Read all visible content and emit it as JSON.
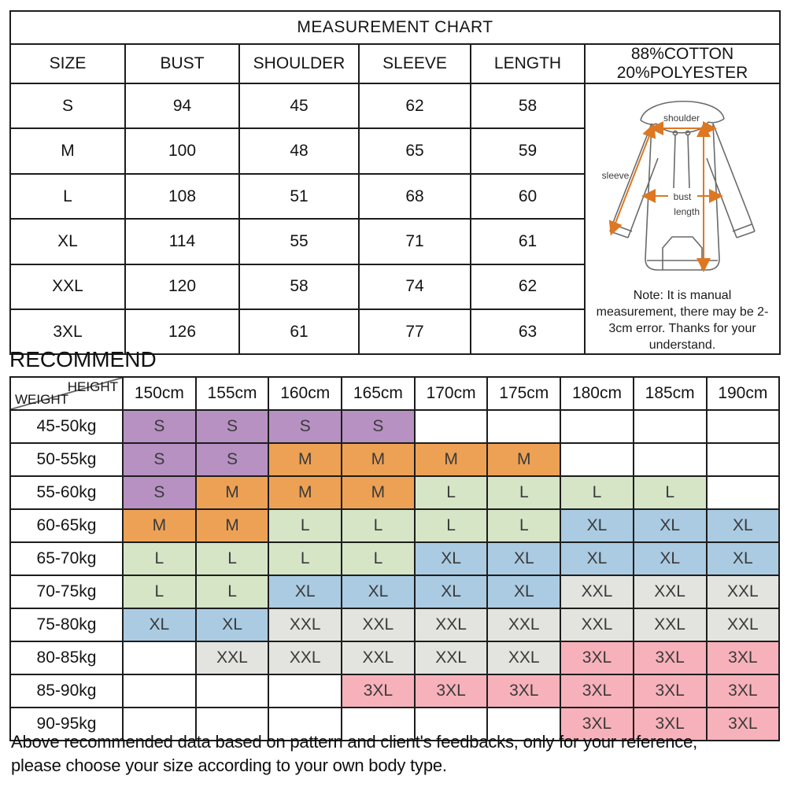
{
  "chart_data": [
    {
      "type": "table",
      "title": "MEASUREMENT CHART",
      "columns": [
        "SIZE",
        "BUST",
        "SHOULDER",
        "SLEEVE",
        "LENGTH"
      ],
      "rows": [
        [
          "S",
          94,
          45,
          62,
          58
        ],
        [
          "M",
          100,
          48,
          65,
          59
        ],
        [
          "L",
          108,
          51,
          68,
          60
        ],
        [
          "XL",
          114,
          55,
          71,
          61
        ],
        [
          "XXL",
          120,
          58,
          74,
          62
        ],
        [
          "3XL",
          126,
          61,
          77,
          63
        ]
      ],
      "fabric": "88%COTTON 20%POLYESTER",
      "note": "Note: It is manual measurement, there may be 2-3cm error. Thanks for your understand."
    },
    {
      "type": "table",
      "title": "RECOMMEND",
      "corner": {
        "top": "HEIGHT",
        "bottom": "WEIGHT"
      },
      "columns": [
        "150cm",
        "155cm",
        "160cm",
        "165cm",
        "170cm",
        "175cm",
        "180cm",
        "185cm",
        "190cm"
      ],
      "row_labels": [
        "45-50kg",
        "50-55kg",
        "55-60kg",
        "60-65kg",
        "65-70kg",
        "70-75kg",
        "75-80kg",
        "80-85kg",
        "85-90kg",
        "90-95kg"
      ],
      "cells": [
        [
          "S",
          "S",
          "S",
          "S",
          "",
          "",
          "",
          "",
          ""
        ],
        [
          "S",
          "S",
          "M",
          "M",
          "M",
          "M",
          "",
          "",
          ""
        ],
        [
          "S",
          "M",
          "M",
          "M",
          "L",
          "L",
          "L",
          "L",
          ""
        ],
        [
          "M",
          "M",
          "L",
          "L",
          "L",
          "L",
          "XL",
          "XL",
          "XL"
        ],
        [
          "L",
          "L",
          "L",
          "L",
          "XL",
          "XL",
          "XL",
          "XL",
          "XL"
        ],
        [
          "L",
          "L",
          "XL",
          "XL",
          "XL",
          "XL",
          "XXL",
          "XXL",
          "XXL"
        ],
        [
          "XL",
          "XL",
          "XXL",
          "XXL",
          "XXL",
          "XXL",
          "XXL",
          "XXL",
          "XXL"
        ],
        [
          "",
          "XXL",
          "XXL",
          "XXL",
          "XXL",
          "XXL",
          "3XL",
          "3XL",
          "3XL"
        ],
        [
          "",
          "",
          "",
          "3XL",
          "3XL",
          "3XL",
          "3XL",
          "3XL",
          "3XL"
        ],
        [
          "",
          "",
          "",
          "",
          "",
          "",
          "3XL",
          "3XL",
          "3XL"
        ]
      ],
      "cell_colors": {
        "S": "#b791c2",
        "M": "#eda155",
        "L": "#d5e5c6",
        "XL": "#aacbe2",
        "XXL": "#e3e3df",
        "3XL": "#f7b1ba"
      },
      "cell_text_color": "#3a3a3a"
    }
  ],
  "diagram": {
    "labels": {
      "shoulder": "shoulder",
      "sleeve": "sleeve",
      "bust": "bust",
      "length": "length"
    },
    "arrow_color": "#dd7722",
    "outline_color": "#6a6a6a"
  },
  "footer": {
    "line1": "Above recommended data based on pattern and client's feedbacks, only for your reference,",
    "line2": "please choose your size according to your own body type."
  }
}
